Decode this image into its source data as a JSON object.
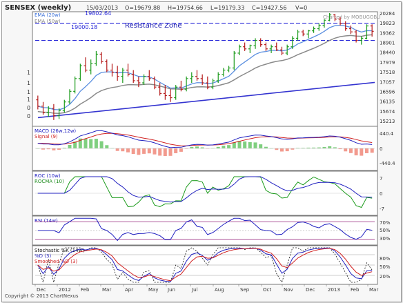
{
  "header": {
    "symbol": "SENSEX (weekly)",
    "date": "15/03/2013",
    "open": "O=19679.88",
    "high": "H=19754.66",
    "low": "L=19179.33",
    "close": "C=19427.56",
    "volume": "V=0",
    "charted_by": "Charted by MOBUGOBU"
  },
  "footer": {
    "copyright": "Copyright © 2013 ChartNexus"
  },
  "price_panel": {
    "legend": [
      "EMA (20w)",
      "EMA (50w)"
    ],
    "legend_colors": [
      "#3a6fd8",
      "#888888"
    ],
    "annotations": {
      "level_high": "19802.64",
      "level_low": "19000.18",
      "zone_label": "Resistance Zone"
    },
    "y_ticks": [
      "20284",
      "19823",
      "19362",
      "18901",
      "18440",
      "17979",
      "17518",
      "17057",
      "16596",
      "16135",
      "15674",
      "15213"
    ],
    "left_labels": [
      "1",
      "1",
      "1",
      "1",
      "0",
      "0"
    ],
    "colors": {
      "up": "#1a9a1a",
      "down": "#b41818",
      "resistance": "#2424d8",
      "trendline": "#3434d0",
      "ema20": "#5b8fe0",
      "ema50": "#8a8a8a"
    }
  },
  "macd_panel": {
    "labels": [
      "MACD (26w,12w)",
      "Signal (9)"
    ],
    "label_colors": [
      "#2020c0",
      "#d02020"
    ],
    "y_ticks": [
      "440.4",
      "0",
      "-440.4"
    ]
  },
  "roc_panel": {
    "labels": [
      "ROC (10w)",
      "ROCMA (10)"
    ],
    "label_colors": [
      "#2020c0",
      "#1a8a1a"
    ],
    "y_ticks": [
      "7",
      "0",
      "-7"
    ]
  },
  "rsi_panel": {
    "labels": [
      "RSI (14w)"
    ],
    "label_colors": [
      "#2020c0"
    ],
    "y_ticks": [
      "70%",
      "50%",
      "30%"
    ]
  },
  "stoch_panel": {
    "labels": [
      "Stochastic %K (14w)",
      "%D (3)",
      "Smoothed %D (3)"
    ],
    "label_colors": [
      "#111111",
      "#2020c0",
      "#d02020"
    ],
    "y_ticks": [
      "80%",
      "50%",
      "20%"
    ]
  },
  "x_axis": [
    "Dec",
    "2012",
    "Feb",
    "Mar",
    "Apr",
    "May",
    "Jun",
    "Jul",
    "Aug",
    "Sep",
    "Oct",
    "Nov",
    "Dec",
    "2013",
    "Feb",
    "Mar"
  ],
  "chart_data": [
    {
      "type": "candlestick",
      "title": "SENSEX (weekly)",
      "ylim": [
        15213,
        20284
      ],
      "y_ticks": [
        20284,
        19823,
        19362,
        18901,
        18440,
        17979,
        17518,
        17057,
        16596,
        16135,
        15674,
        15213
      ],
      "ohlc": [
        [
          16200,
          16400,
          15750,
          15900
        ],
        [
          15900,
          16100,
          15500,
          15600
        ],
        [
          15600,
          15900,
          15400,
          15800
        ],
        [
          15800,
          16000,
          15250,
          15450
        ],
        [
          15450,
          15800,
          15300,
          15700
        ],
        [
          15700,
          16200,
          15600,
          16100
        ],
        [
          16100,
          16700,
          16000,
          16600
        ],
        [
          16600,
          17300,
          16500,
          17200
        ],
        [
          17200,
          17900,
          17100,
          17800
        ],
        [
          17800,
          18200,
          17500,
          17600
        ],
        [
          17600,
          18100,
          17400,
          17900
        ],
        [
          17900,
          18500,
          17800,
          18350
        ],
        [
          18350,
          18450,
          17900,
          18000
        ],
        [
          18000,
          18100,
          17500,
          17600
        ],
        [
          17600,
          17900,
          17300,
          17500
        ],
        [
          17500,
          17800,
          17100,
          17300
        ],
        [
          17300,
          17700,
          17000,
          17600
        ],
        [
          17600,
          17900,
          17300,
          17400
        ],
        [
          17400,
          17600,
          17000,
          17100
        ],
        [
          17100,
          17300,
          16800,
          17000
        ],
        [
          17000,
          17400,
          16900,
          17300
        ],
        [
          17300,
          17600,
          17100,
          17200
        ],
        [
          17200,
          17300,
          16700,
          16800
        ],
        [
          16800,
          17000,
          16400,
          16500
        ],
        [
          16500,
          16900,
          16200,
          16400
        ],
        [
          16400,
          16700,
          16100,
          16300
        ],
        [
          16300,
          16900,
          16200,
          16800
        ],
        [
          16800,
          17100,
          16600,
          16700
        ],
        [
          16700,
          17300,
          16600,
          17200
        ],
        [
          17200,
          17500,
          17000,
          17300
        ],
        [
          17300,
          17600,
          17100,
          17200
        ],
        [
          17200,
          17400,
          16900,
          17000
        ],
        [
          17000,
          17300,
          16700,
          16800
        ],
        [
          16800,
          17200,
          16700,
          17100
        ],
        [
          17100,
          17500,
          17000,
          17400
        ],
        [
          17400,
          17700,
          17300,
          17600
        ],
        [
          17600,
          17800,
          17500,
          17700
        ],
        [
          17700,
          18500,
          17600,
          18400
        ],
        [
          18400,
          18800,
          18300,
          18700
        ],
        [
          18700,
          18900,
          18500,
          18600
        ],
        [
          18600,
          18800,
          18400,
          18750
        ],
        [
          18750,
          19100,
          18600,
          19000
        ],
        [
          19000,
          19100,
          18700,
          18800
        ],
        [
          18800,
          18900,
          18500,
          18600
        ],
        [
          18600,
          18800,
          18400,
          18700
        ],
        [
          18700,
          18900,
          18500,
          18550
        ],
        [
          18550,
          18700,
          18300,
          18400
        ],
        [
          18400,
          18800,
          18300,
          18700
        ],
        [
          18700,
          19200,
          18600,
          19100
        ],
        [
          19100,
          19500,
          19000,
          19400
        ],
        [
          19400,
          19500,
          19200,
          19300
        ],
        [
          19300,
          19500,
          19100,
          19450
        ],
        [
          19450,
          19650,
          19350,
          19550
        ],
        [
          19550,
          19800,
          19450,
          19700
        ],
        [
          19700,
          20000,
          19600,
          19950
        ],
        [
          19950,
          20284,
          19900,
          20200
        ],
        [
          20200,
          20250,
          19900,
          20000
        ],
        [
          20000,
          20100,
          19700,
          19800
        ],
        [
          19800,
          19900,
          19450,
          19550
        ],
        [
          19550,
          19700,
          19300,
          19400
        ],
        [
          19400,
          19500,
          18900,
          19000
        ],
        [
          19000,
          19200,
          18800,
          19100
        ],
        [
          19100,
          19754,
          19050,
          19680
        ],
        [
          19680,
          19754,
          19179,
          19428
        ]
      ],
      "resistance_levels": [
        19802.64,
        19000.18
      ]
    },
    {
      "type": "line",
      "title": "MACD (26w,12w)",
      "ylim": [
        -440.4,
        440.4
      ]
    },
    {
      "type": "line",
      "title": "ROC (10w)",
      "ylim": [
        -7,
        7
      ]
    },
    {
      "type": "line",
      "title": "RSI (14w)",
      "ylim": [
        30,
        70
      ]
    },
    {
      "type": "line",
      "title": "Stochastic %K (14w)",
      "ylim": [
        20,
        80
      ]
    }
  ]
}
